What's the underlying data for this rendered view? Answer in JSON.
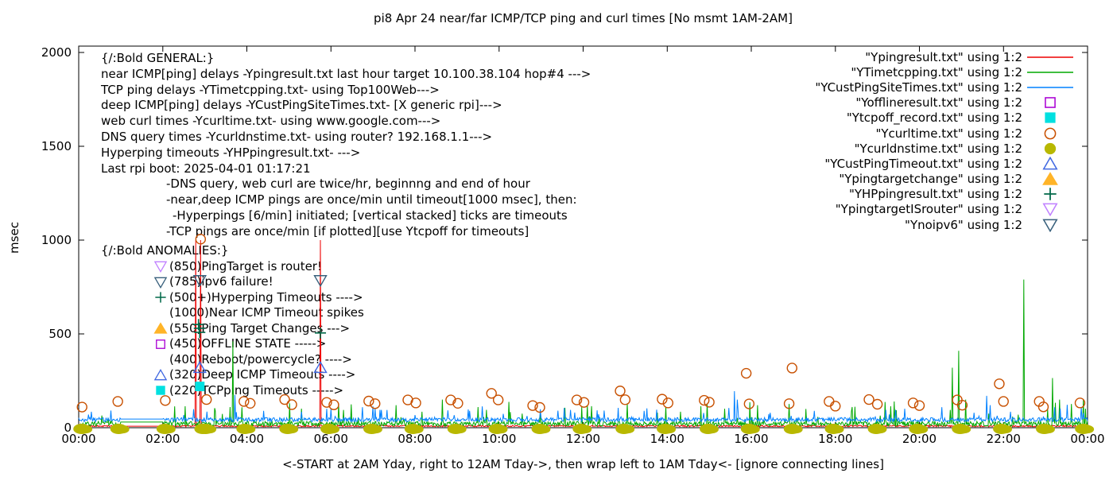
{
  "title": "pi8 Apr 24  near/far ICMP/TCP ping and curl times [No msmt 1AM-2AM]",
  "ylabel": "msec",
  "xlabel": "<-START at 2AM Yday, right to 12AM Tday->, then wrap left to 1AM Tday<- [ignore connecting lines]",
  "axes": {
    "xlim": [
      0,
      24
    ],
    "ylim": [
      0,
      2000
    ],
    "x_ticks": [
      {
        "h": 0,
        "label": "00:00"
      },
      {
        "h": 2,
        "label": "02:00"
      },
      {
        "h": 4,
        "label": "04:00"
      },
      {
        "h": 6,
        "label": "06:00"
      },
      {
        "h": 8,
        "label": "08:00"
      },
      {
        "h": 10,
        "label": "10:00"
      },
      {
        "h": 12,
        "label": "12:00"
      },
      {
        "h": 14,
        "label": "14:00"
      },
      {
        "h": 16,
        "label": "16:00"
      },
      {
        "h": 18,
        "label": "18:00"
      },
      {
        "h": 20,
        "label": "20:00"
      },
      {
        "h": 22,
        "label": "22:00"
      },
      {
        "h": 24,
        "label": "00:00"
      }
    ],
    "y_ticks": [
      {
        "v": 0,
        "label": "0"
      },
      {
        "v": 500,
        "label": "500"
      },
      {
        "v": 1000,
        "label": "1000"
      },
      {
        "v": 1500,
        "label": "1500"
      },
      {
        "v": 2000,
        "label": "2000"
      }
    ]
  },
  "general_notes": [
    {
      "text": "{/:Bold GENERAL:}",
      "indent": 0
    },
    {
      "text": "near ICMP[ping] delays -Ypingresult.txt last hour target 10.100.38.104 hop#4 --->",
      "indent": 0
    },
    {
      "text": "TCP ping delays -YTimetcpping.txt- using Top100Web--->",
      "indent": 0
    },
    {
      "text": "deep ICMP[ping] delays -YCustPingSiteTimes.txt- [X generic rpi]--->",
      "indent": 0
    },
    {
      "text": "web curl times -Ycurltime.txt- using www.google.com--->",
      "indent": 0
    },
    {
      "text": "DNS query times -Ycurldnstime.txt- using router? 192.168.1.1--->",
      "indent": 0
    },
    {
      "text": "Hyperping timeouts -YHPpingresult.txt- --->",
      "indent": 0
    },
    {
      "text": "Last rpi boot: 2025-04-01 01:17:21",
      "indent": 0
    },
    {
      "text": "-DNS query, web curl are twice/hr, beginnng and end of hour",
      "indent": 1
    },
    {
      "text": "-near,deep ICMP pings are once/min until timeout[1000 msec], then:",
      "indent": 1
    },
    {
      "text": "-Hyperpings [6/min] initiated; [vertical stacked] ticks are timeouts",
      "indent": 2
    },
    {
      "text": "-TCP pings are once/min [if plotted][use Ytcpoff for timeouts]",
      "indent": 1
    }
  ],
  "anomaly_notes": [
    {
      "marker": "",
      "color": "",
      "text": "{/:Bold ANOMALIES:}",
      "header": true
    },
    {
      "marker": "tri-down-open",
      "color": "#c080ff",
      "text": "(850)PingTarget is router!",
      "header": false
    },
    {
      "marker": "tri-down-open",
      "color": "#38607c",
      "text": "(785)ipv6 failure!",
      "header": false
    },
    {
      "marker": "plus",
      "color": "#006848",
      "text": "(500+)Hyperping Timeouts ---->",
      "header": false
    },
    {
      "marker": "",
      "color": "",
      "text": "(1000)Near ICMP Timeout spikes",
      "header": false
    },
    {
      "marker": "tri-up-filled",
      "color": "#ffb428",
      "text": "(550)Ping Target Changes --->",
      "header": false
    },
    {
      "marker": "square-open",
      "color": "#aa00d4",
      "text": "(450)OFFLINE STATE ----->",
      "header": false
    },
    {
      "marker": "",
      "color": "",
      "text": "(400)Reboot/powercycle? ---->",
      "header": false
    },
    {
      "marker": "tri-up-open",
      "color": "#4169e1",
      "text": "(320)Deep ICMP Timeouts ---->",
      "header": false
    },
    {
      "marker": "square-filled",
      "color": "#00e0e0",
      "text": "(220)TCPping Timeouts ----->",
      "header": false
    }
  ],
  "chart_data": {
    "type": "line+scatter",
    "x_unit": "hours (clock time, wraps: starts 2AM yesterday)",
    "no_measurement_gap_hours": [
      1.0,
      2.0
    ],
    "grid": false,
    "legend_position": "top-right",
    "series": [
      {
        "name": "\"Ypingresult.txt\" using 1:2",
        "kind": "line",
        "color": "#ee0000",
        "baseline_msec": 5,
        "noise_msec": 8,
        "burst_p": 0,
        "burst_amp": 0,
        "gap_value": 8,
        "seed": 101,
        "spikes": [
          [
            2.78,
            1000
          ],
          [
            2.9,
            1000
          ],
          [
            5.75,
            1000
          ]
        ]
      },
      {
        "name": "\"YTimetcpping.txt\" using 1:2",
        "kind": "line",
        "color": "#00a800",
        "baseline_msec": 8,
        "noise_msec": 26,
        "burst_p": 0.05,
        "burst_amp": 110,
        "gap_value": 30,
        "seed": 202,
        "spikes": [
          [
            0.55,
            65
          ],
          [
            3.67,
            460
          ],
          [
            5.02,
            130
          ],
          [
            6.3,
            95
          ],
          [
            7.55,
            120
          ],
          [
            8.65,
            150
          ],
          [
            9.5,
            110
          ],
          [
            12.2,
            115
          ],
          [
            13.05,
            130
          ],
          [
            14.8,
            115
          ],
          [
            16.15,
            120
          ],
          [
            17.3,
            100
          ],
          [
            18.4,
            110
          ],
          [
            19.4,
            140
          ],
          [
            20.78,
            320
          ],
          [
            20.93,
            410
          ],
          [
            21.1,
            150
          ],
          [
            22.48,
            790
          ],
          [
            23.17,
            265
          ],
          [
            23.33,
            150
          ],
          [
            23.9,
            150
          ]
        ]
      },
      {
        "name": "\"YCustPingSiteTimes.txt\" using 1:2",
        "kind": "line",
        "color": "#0080ff",
        "baseline_msec": 32,
        "noise_msec": 22,
        "burst_p": 0.05,
        "burst_amp": 70,
        "gap_value": 46,
        "seed": 303,
        "spikes": [
          [
            0.3,
            85
          ],
          [
            3.72,
            175
          ],
          [
            4.4,
            90
          ],
          [
            5.3,
            85
          ],
          [
            7.2,
            95
          ],
          [
            9.3,
            90
          ],
          [
            11.55,
            105
          ],
          [
            11.7,
            95
          ],
          [
            13.45,
            90
          ],
          [
            15.6,
            195
          ],
          [
            15.66,
            150
          ],
          [
            17.5,
            90
          ],
          [
            19.2,
            95
          ],
          [
            21.6,
            170
          ],
          [
            21.68,
            120
          ],
          [
            23.85,
            110
          ]
        ]
      },
      {
        "name": "\"Yofflineresult.txt\" using 1:2",
        "kind": "points",
        "marker": "square-open",
        "color": "#aa00d4",
        "points": []
      },
      {
        "name": "\"Ytcpoff_record.txt\" using 1:2",
        "kind": "points",
        "marker": "square-filled",
        "color": "#00e0e0",
        "points": [
          [
            2.88,
            220
          ]
        ]
      },
      {
        "name": "\"Ycurltime.txt\" using 1:2",
        "kind": "points",
        "marker": "circle-open",
        "color": "#c85000",
        "points": [
          [
            0.08,
            110
          ],
          [
            0.93,
            140
          ],
          [
            2.06,
            145
          ],
          [
            2.9,
            1005
          ],
          [
            3.04,
            150
          ],
          [
            3.93,
            140
          ],
          [
            4.08,
            130
          ],
          [
            4.9,
            150
          ],
          [
            5.07,
            123
          ],
          [
            5.9,
            135
          ],
          [
            6.07,
            122
          ],
          [
            6.9,
            142
          ],
          [
            7.05,
            128
          ],
          [
            7.83,
            148
          ],
          [
            8.02,
            132
          ],
          [
            8.85,
            148
          ],
          [
            9.02,
            130
          ],
          [
            9.82,
            183
          ],
          [
            9.98,
            148
          ],
          [
            10.8,
            118
          ],
          [
            10.97,
            108
          ],
          [
            11.85,
            148
          ],
          [
            12.02,
            135
          ],
          [
            12.88,
            196
          ],
          [
            13.0,
            149
          ],
          [
            13.88,
            152
          ],
          [
            14.02,
            132
          ],
          [
            14.88,
            146
          ],
          [
            15.0,
            136
          ],
          [
            15.88,
            290
          ],
          [
            15.95,
            127
          ],
          [
            16.9,
            128
          ],
          [
            16.97,
            318
          ],
          [
            17.85,
            140
          ],
          [
            18.0,
            115
          ],
          [
            18.8,
            150
          ],
          [
            19.0,
            125
          ],
          [
            19.85,
            132
          ],
          [
            20.0,
            118
          ],
          [
            20.9,
            148
          ],
          [
            21.02,
            120
          ],
          [
            21.9,
            234
          ],
          [
            22.0,
            140
          ],
          [
            22.85,
            140
          ],
          [
            22.95,
            111
          ],
          [
            23.82,
            132
          ]
        ]
      },
      {
        "name": "\"Ycurldnstime.txt\" using 1:2",
        "kind": "points",
        "marker": "blob",
        "color": "#b8b800",
        "points": [
          [
            0.07,
            2
          ],
          [
            0.95,
            2
          ],
          [
            2.05,
            2
          ],
          [
            2.95,
            2
          ],
          [
            3.02,
            2
          ],
          [
            3.95,
            2
          ],
          [
            4.97,
            2
          ],
          [
            5.95,
            2
          ],
          [
            6.97,
            2
          ],
          [
            7.95,
            2
          ],
          [
            8.97,
            2
          ],
          [
            9.95,
            2
          ],
          [
            10.97,
            2
          ],
          [
            11.95,
            2
          ],
          [
            12.97,
            2
          ],
          [
            13.95,
            2
          ],
          [
            14.97,
            2
          ],
          [
            15.95,
            2
          ],
          [
            16.97,
            2
          ],
          [
            17.95,
            2
          ],
          [
            18.97,
            2
          ],
          [
            19.95,
            2
          ],
          [
            20.97,
            2
          ],
          [
            21.95,
            2
          ],
          [
            22.97,
            2
          ],
          [
            23.9,
            2
          ]
        ]
      },
      {
        "name": "\"YCustPingTimeout.txt\" using 1:2",
        "kind": "points",
        "marker": "tri-up-open",
        "color": "#4169e1",
        "points": [
          [
            2.88,
            320
          ],
          [
            5.75,
            320
          ]
        ]
      },
      {
        "name": "\"Ypingtargetchange\" using 1:2",
        "kind": "points",
        "marker": "tri-up-filled",
        "color": "#ffb428",
        "points": []
      },
      {
        "name": "\"YHPpingresult.txt\" using 1:2",
        "kind": "points",
        "marker": "plus",
        "color": "#006848",
        "points": [
          [
            2.85,
            550
          ],
          [
            2.87,
            530
          ],
          [
            2.88,
            508
          ],
          [
            5.75,
            505
          ]
        ]
      },
      {
        "name": "\"YpingtargetISrouter\" using 1:2",
        "kind": "points",
        "marker": "tri-down-open",
        "color": "#c080ff",
        "points": []
      },
      {
        "name": "\"Ynoipv6\" using 1:2",
        "kind": "points",
        "marker": "tri-down-open",
        "color": "#38607c",
        "points": [
          [
            2.88,
            785
          ],
          [
            5.75,
            785
          ]
        ]
      }
    ]
  }
}
